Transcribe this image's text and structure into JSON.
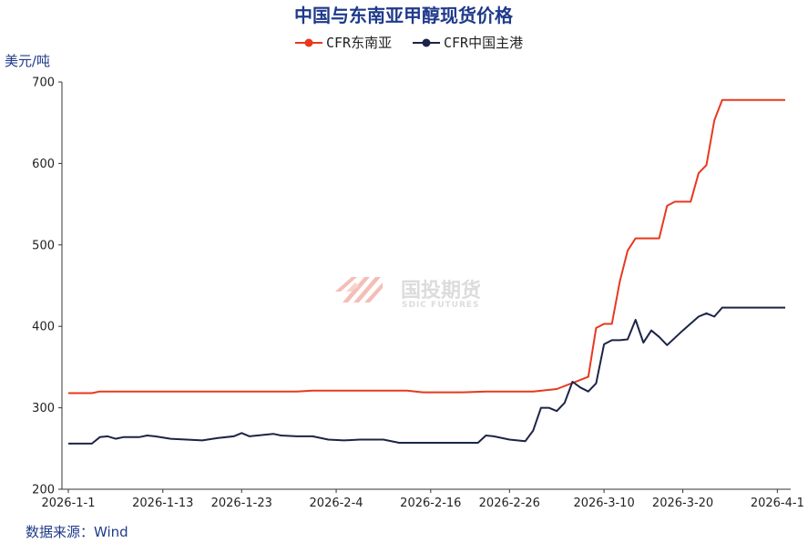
{
  "chart_data": {
    "type": "line",
    "title": "中国与东南亚甲醇现货价格",
    "ylabel": "美元/吨",
    "ylim": [
      200,
      700
    ],
    "yticks": [
      200,
      300,
      400,
      500,
      600,
      700
    ],
    "xlim": [
      "2026-01-01",
      "2026-04-02"
    ],
    "xticks": [
      "2026-1-1",
      "2026-1-13",
      "2026-1-23",
      "2026-2-4",
      "2026-2-16",
      "2026-2-26",
      "2026-3-10",
      "2026-3-20",
      "2026-4-1"
    ],
    "legend_position": "top-center",
    "grid": false,
    "series": [
      {
        "name": "CFR东南亚",
        "color": "#e8381f",
        "points": [
          [
            "2026-01-01",
            318
          ],
          [
            "2026-01-04",
            318
          ],
          [
            "2026-01-05",
            320
          ],
          [
            "2026-01-10",
            320
          ],
          [
            "2026-01-20",
            320
          ],
          [
            "2026-01-30",
            320
          ],
          [
            "2026-02-01",
            321
          ],
          [
            "2026-02-10",
            321
          ],
          [
            "2026-02-13",
            321
          ],
          [
            "2026-02-15",
            319
          ],
          [
            "2026-02-20",
            319
          ],
          [
            "2026-02-23",
            320
          ],
          [
            "2026-03-01",
            320
          ],
          [
            "2026-03-04",
            323
          ],
          [
            "2026-03-08",
            338
          ],
          [
            "2026-03-09",
            398
          ],
          [
            "2026-03-10",
            403
          ],
          [
            "2026-03-11",
            403
          ],
          [
            "2026-03-12",
            455
          ],
          [
            "2026-03-13",
            493
          ],
          [
            "2026-03-14",
            508
          ],
          [
            "2026-03-17",
            508
          ],
          [
            "2026-03-18",
            548
          ],
          [
            "2026-03-19",
            553
          ],
          [
            "2026-03-21",
            553
          ],
          [
            "2026-03-22",
            588
          ],
          [
            "2026-03-23",
            598
          ],
          [
            "2026-03-24",
            653
          ],
          [
            "2026-03-25",
            678
          ],
          [
            "2026-04-02",
            678
          ]
        ]
      },
      {
        "name": "CFR中国主港",
        "color": "#1c2447",
        "points": [
          [
            "2026-01-01",
            256
          ],
          [
            "2026-01-04",
            256
          ],
          [
            "2026-01-05",
            264
          ],
          [
            "2026-01-06",
            265
          ],
          [
            "2026-01-07",
            262
          ],
          [
            "2026-01-08",
            264
          ],
          [
            "2026-01-10",
            264
          ],
          [
            "2026-01-11",
            266
          ],
          [
            "2026-01-12",
            265
          ],
          [
            "2026-01-14",
            262
          ],
          [
            "2026-01-16",
            261
          ],
          [
            "2026-01-18",
            260
          ],
          [
            "2026-01-20",
            263
          ],
          [
            "2026-01-22",
            265
          ],
          [
            "2026-01-23",
            269
          ],
          [
            "2026-01-24",
            265
          ],
          [
            "2026-01-26",
            267
          ],
          [
            "2026-01-27",
            268
          ],
          [
            "2026-01-28",
            266
          ],
          [
            "2026-01-30",
            265
          ],
          [
            "2026-02-01",
            265
          ],
          [
            "2026-02-03",
            261
          ],
          [
            "2026-02-05",
            260
          ],
          [
            "2026-02-07",
            261
          ],
          [
            "2026-02-10",
            261
          ],
          [
            "2026-02-12",
            257
          ],
          [
            "2026-02-15",
            257
          ],
          [
            "2026-02-20",
            257
          ],
          [
            "2026-02-22",
            257
          ],
          [
            "2026-02-23",
            266
          ],
          [
            "2026-02-24",
            265
          ],
          [
            "2026-02-26",
            261
          ],
          [
            "2026-02-28",
            259
          ],
          [
            "2026-03-01",
            272
          ],
          [
            "2026-03-02",
            300
          ],
          [
            "2026-03-03",
            300
          ],
          [
            "2026-03-04",
            296
          ],
          [
            "2026-03-05",
            306
          ],
          [
            "2026-03-06",
            332
          ],
          [
            "2026-03-07",
            325
          ],
          [
            "2026-03-08",
            320
          ],
          [
            "2026-03-09",
            330
          ],
          [
            "2026-03-10",
            378
          ],
          [
            "2026-03-11",
            383
          ],
          [
            "2026-03-12",
            383
          ],
          [
            "2026-03-13",
            384
          ],
          [
            "2026-03-14",
            408
          ],
          [
            "2026-03-15",
            380
          ],
          [
            "2026-03-16",
            395
          ],
          [
            "2026-03-17",
            387
          ],
          [
            "2026-03-18",
            377
          ],
          [
            "2026-03-20",
            395
          ],
          [
            "2026-03-22",
            412
          ],
          [
            "2026-03-23",
            416
          ],
          [
            "2026-03-24",
            412
          ],
          [
            "2026-03-25",
            423
          ],
          [
            "2026-04-02",
            423
          ]
        ]
      }
    ]
  },
  "watermark": {
    "cn": "国投期货",
    "en": "SDIC FUTURES"
  },
  "source": "数据来源：Wind"
}
